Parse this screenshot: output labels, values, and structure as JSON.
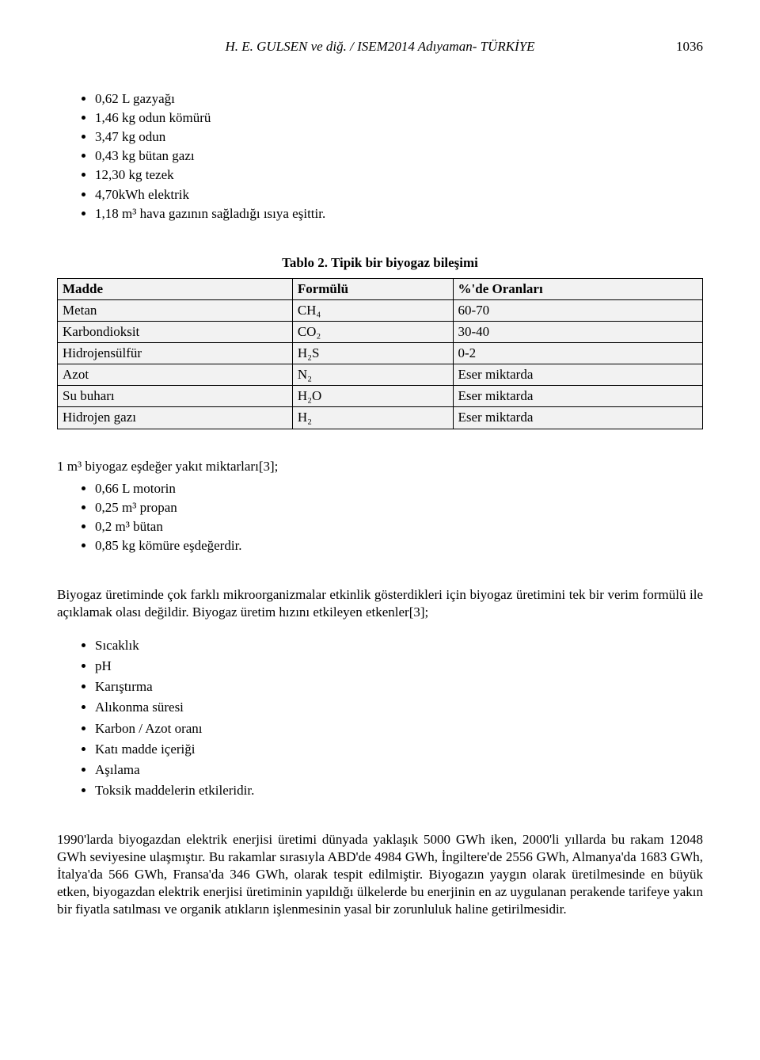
{
  "header": {
    "authors": "H. E. GULSEN ve diğ. / ISEM2014 Adıyaman- TÜRKİYE",
    "pagenum": "1036"
  },
  "fuel_list": [
    "0,62 L gazyağı",
    "1,46 kg odun kömürü",
    "3,47 kg odun",
    "0,43 kg bütan gazı",
    "12,30 kg tezek",
    "4,70kWh elektrik",
    "1,18 m³ hava gazının sağladığı ısıya eşittir."
  ],
  "table_caption": "Tablo 2. Tipik bir biyogaz bileşimi",
  "table": {
    "headers": [
      "Madde",
      "Formülü",
      "%'de Oranları"
    ],
    "rows": [
      [
        "Metan",
        "CH₄",
        "60-70"
      ],
      [
        "Karbondioksit",
        "CO₂",
        "30-40"
      ],
      [
        "Hidrojensülfür",
        "H₂S",
        "0-2"
      ],
      [
        "Azot",
        "N₂",
        "Eser miktarda"
      ],
      [
        "Su buharı",
        "H₂O",
        "Eser miktarda"
      ],
      [
        "Hidrojen gazı",
        "H₂",
        "Eser miktarda"
      ]
    ]
  },
  "equiv_intro": "1 m³ biyogaz eşdeğer yakıt miktarları[3];",
  "equiv_list": [
    "0,66 L motorin",
    "0,25 m³ propan",
    "0,2 m³ bütan",
    "0,85 kg kömüre eşdeğerdir."
  ],
  "para1": "Biyogaz üretiminde çok farklı mikroorganizmalar etkinlik gösterdikleri için biyogaz üretimini tek bir verim formülü ile açıklamak olası değildir. Biyogaz üretim hızını etkileyen etkenler[3];",
  "factors": [
    "Sıcaklık",
    "pH",
    "Karıştırma",
    "Alıkonma süresi",
    "Karbon / Azot oranı",
    "Katı madde içeriği",
    "Aşılama",
    "Toksik maddelerin etkileridir."
  ],
  "para2": "1990'larda biyogazdan elektrik enerjisi üretimi dünyada yaklaşık 5000 GWh iken, 2000'li yıllarda bu rakam 12048 GWh seviyesine ulaşmıştır. Bu rakamlar sırasıyla ABD'de 4984 GWh, İngiltere'de 2556 GWh, Almanya'da 1683 GWh, İtalya'da 566 GWh, Fransa'da 346 GWh, olarak tespit edilmiştir.  Biyogazın yaygın olarak üretilmesinde en büyük etken, biyogazdan elektrik enerjisi üretiminin yapıldığı ülkelerde bu enerjinin en az uygulanan perakende tarifeye yakın bir fiyatla satılması ve organik atıkların işlenmesinin yasal bir zorunluluk haline getirilmesidir."
}
